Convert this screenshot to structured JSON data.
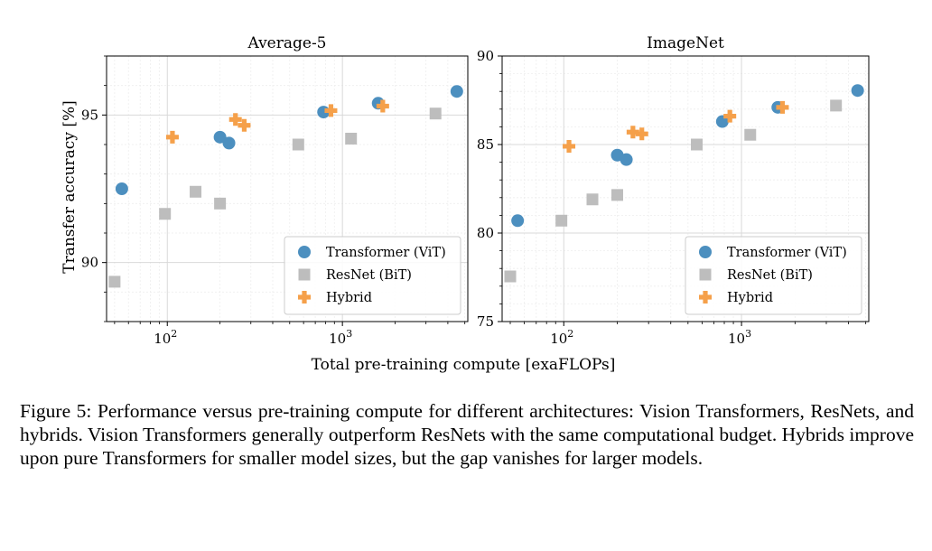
{
  "figure": {
    "xlabel": "Total pre-training compute [exaFLOPs]",
    "ylabel": "Transfer accuracy [%]"
  },
  "chart_data": [
    {
      "type": "scatter",
      "title": "Average-5",
      "xscale": "log",
      "xlim": [
        45,
        5200
      ],
      "ylim": [
        88,
        97
      ],
      "xticks": [
        100,
        1000
      ],
      "xtick_labels": [
        "10",
        "10"
      ],
      "xtick_exponents": [
        "2",
        "3"
      ],
      "yticks": [
        90,
        95
      ],
      "ytick_labels": [
        "90",
        "95"
      ],
      "grid": true,
      "legend_position": "lower-right",
      "series": [
        {
          "name": "Transformer (ViT)",
          "marker": "circle",
          "color": "#4c8fbf",
          "points": [
            [
              55,
              92.5
            ],
            [
              200,
              94.25
            ],
            [
              225,
              94.05
            ],
            [
              780,
              95.1
            ],
            [
              1600,
              95.4
            ],
            [
              4500,
              95.8
            ]
          ]
        },
        {
          "name": "ResNet (BiT)",
          "marker": "square",
          "color": "#bdbdbd",
          "points": [
            [
              50,
              89.35
            ],
            [
              97,
              91.65
            ],
            [
              145,
              92.4
            ],
            [
              200,
              92
            ],
            [
              560,
              94
            ],
            [
              1120,
              94.2
            ],
            [
              3400,
              95.05
            ]
          ]
        },
        {
          "name": "Hybrid",
          "marker": "plus",
          "color": "#f5a04a",
          "points": [
            [
              107,
              94.25
            ],
            [
              245,
              94.85
            ],
            [
              275,
              94.65
            ],
            [
              860,
              95.15
            ],
            [
              1700,
              95.3
            ]
          ]
        }
      ]
    },
    {
      "type": "scatter",
      "title": "ImageNet",
      "xscale": "log",
      "xlim": [
        45,
        5200
      ],
      "ylim": [
        75,
        90
      ],
      "xticks": [
        100,
        1000
      ],
      "xtick_labels": [
        "10",
        "10"
      ],
      "xtick_exponents": [
        "2",
        "3"
      ],
      "yticks": [
        75,
        80,
        85,
        90
      ],
      "ytick_labels": [
        "75",
        "80",
        "85",
        "90"
      ],
      "grid": true,
      "legend_position": "lower-right",
      "series": [
        {
          "name": "Transformer (ViT)",
          "marker": "circle",
          "color": "#4c8fbf",
          "points": [
            [
              55,
              80.7
            ],
            [
              200,
              84.4
            ],
            [
              225,
              84.15
            ],
            [
              780,
              86.3
            ],
            [
              1600,
              87.1
            ],
            [
              4500,
              88.05
            ]
          ]
        },
        {
          "name": "ResNet (BiT)",
          "marker": "square",
          "color": "#bdbdbd",
          "points": [
            [
              50,
              77.55
            ],
            [
              97,
              80.7
            ],
            [
              145,
              81.9
            ],
            [
              200,
              82.15
            ],
            [
              560,
              85
            ],
            [
              1120,
              85.55
            ],
            [
              3400,
              87.2
            ]
          ]
        },
        {
          "name": "Hybrid",
          "marker": "plus",
          "color": "#f5a04a",
          "points": [
            [
              107,
              84.9
            ],
            [
              245,
              85.7
            ],
            [
              275,
              85.6
            ],
            [
              860,
              86.6
            ],
            [
              1700,
              87.1
            ]
          ]
        }
      ]
    }
  ],
  "caption": "Figure 5: Performance versus pre-training compute for different architectures: Vision Transformers, ResNets, and hybrids. Vision Transformers generally outperform ResNets with the same computational budget. Hybrids improve upon pure Transformers for smaller model sizes, but the gap vanishes for larger models."
}
